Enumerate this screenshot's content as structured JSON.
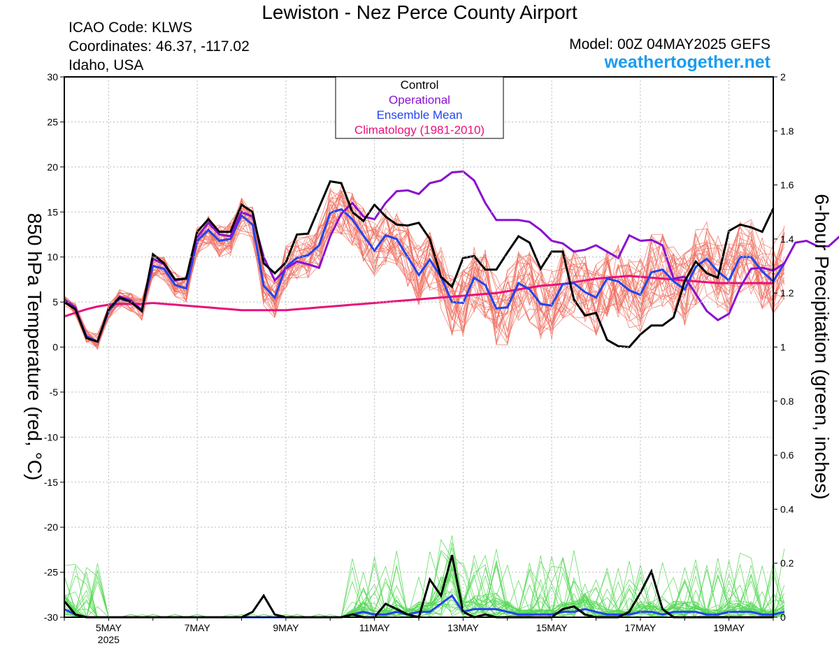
{
  "header": {
    "title": "Lewiston - Nez Perce County Airport",
    "icao": "ICAO Code: KLWS",
    "coordinates": "Coordinates: 46.37, -117.02",
    "region": "Idaho, USA",
    "model": "Model: 00Z 04MAY2025 GEFS",
    "site": "weathertogether.net"
  },
  "colors": {
    "members_temp": "#f07060",
    "members_precip": "#55d855",
    "control": "#000000",
    "operational": "#8a10d0",
    "ensemble_mean": "#2244ee",
    "climatology": "#e8107a"
  },
  "chart_data": {
    "type": "line",
    "x_unit": "days since 04MAY2025 00Z",
    "xlim": [
      0,
      16
    ],
    "x_ticks": [
      {
        "x": 1,
        "label": "5MAY"
      },
      {
        "x": 3,
        "label": "7MAY"
      },
      {
        "x": 5,
        "label": "9MAY"
      },
      {
        "x": 7,
        "label": "11MAY"
      },
      {
        "x": 9,
        "label": "13MAY"
      },
      {
        "x": 11,
        "label": "15MAY"
      },
      {
        "x": 13,
        "label": "17MAY"
      },
      {
        "x": 15,
        "label": "19MAY"
      }
    ],
    "year_label": "2025",
    "ylabel_left": "850 hPa Temperature (red, °C)",
    "ylabel_right": "6-hour Precipitation (green, inches)",
    "ylim_left": [
      -30,
      30
    ],
    "yticks_left": [
      30,
      25,
      20,
      15,
      10,
      5,
      0,
      -5,
      -10,
      -15,
      -20,
      -25,
      -30
    ],
    "ylim_right": [
      0,
      2
    ],
    "yticks_right": [
      "2",
      "1.8",
      "1.6",
      "1.4",
      "1.2",
      "1",
      "0.8",
      "0.6",
      "0.4",
      "0.2",
      "0"
    ],
    "legend": {
      "placement": "top-center",
      "entries": [
        {
          "label": "Control",
          "color": "#000000"
        },
        {
          "label": "Operational",
          "color": "#8a10d0"
        },
        {
          "label": "Ensemble Mean",
          "color": "#2244ee"
        },
        {
          "label": "Climatology (1981-2010)",
          "color": "#e8107a"
        }
      ]
    },
    "step_days": 0.25,
    "temperature": {
      "control": [
        5.0,
        4.2,
        1.0,
        0.6,
        4.2,
        5.5,
        5.0,
        4.0,
        10.3,
        9.3,
        7.5,
        7.6,
        12.8,
        14.2,
        12.8,
        12.8,
        15.8,
        15.0,
        9.3,
        8.2,
        9.4,
        12.5,
        12.6,
        15.5,
        18.4,
        18.2,
        15.0,
        14.0,
        15.8,
        14.5,
        13.6,
        13.5,
        13.8,
        12.0,
        7.8,
        6.7,
        9.9,
        10.1,
        8.6,
        8.6,
        10.5,
        12.3,
        11.6,
        8.7,
        10.6,
        10.6,
        5.3,
        3.5,
        3.8,
        0.8,
        0.1,
        0.0,
        1.4,
        2.4,
        2.4,
        3.3,
        7.3,
        9.5,
        8.2,
        7.7,
        12.9,
        13.6,
        13.3,
        12.8,
        15.4
      ],
      "operational": [
        5.3,
        4.4,
        1.0,
        0.6,
        4.2,
        5.6,
        5.2,
        4.0,
        9.8,
        9.2,
        7.4,
        7.6,
        12.2,
        13.8,
        12.5,
        12.3,
        15.0,
        14.5,
        10.0,
        7.4,
        8.7,
        9.5,
        9.2,
        8.8,
        12.3,
        14.8,
        16.0,
        14.5,
        14.2,
        16.0,
        17.3,
        17.4,
        17.0,
        18.2,
        18.5,
        19.4,
        19.5,
        18.5,
        16.0,
        14.1,
        14.1,
        14.1,
        13.9,
        13.0,
        11.8,
        11.5,
        10.6,
        10.8,
        11.3,
        10.6,
        9.9,
        12.4,
        11.8,
        11.9,
        11.3,
        7.6,
        7.8,
        5.9,
        4.0,
        3.0,
        3.7,
        6.6,
        8.7,
        8.8,
        8.5,
        9.3,
        11.6,
        11.8,
        11.2,
        11.2,
        12.3,
        13.7,
        14.5,
        14.2,
        15.1,
        17.4
      ],
      "ensemble_mean": [
        5.2,
        4.2,
        1.2,
        0.6,
        4.0,
        5.4,
        5.0,
        4.2,
        9.0,
        8.7,
        6.9,
        6.5,
        11.8,
        13.0,
        11.8,
        12.0,
        14.6,
        13.6,
        6.8,
        5.5,
        8.9,
        9.9,
        10.2,
        11.3,
        14.9,
        15.3,
        14.2,
        12.4,
        10.7,
        12.4,
        12.0,
        10.0,
        8.0,
        9.7,
        7.8,
        5.0,
        4.9,
        7.7,
        6.9,
        4.3,
        4.4,
        7.1,
        6.4,
        4.8,
        4.6,
        7.0,
        7.1,
        6.1,
        5.5,
        7.6,
        7.3,
        6.3,
        5.8,
        8.3,
        8.6,
        7.3,
        6.4,
        8.9,
        9.8,
        8.4,
        7.4,
        10.0,
        10.0,
        8.4,
        7.3,
        9.3
      ],
      "climatology": [
        3.4,
        3.8,
        4.2,
        4.5,
        4.7,
        4.8,
        4.8,
        4.8,
        4.9,
        4.8,
        4.7,
        4.6,
        4.5,
        4.4,
        4.3,
        4.2,
        4.1,
        4.1,
        4.1,
        4.1,
        4.1,
        4.2,
        4.3,
        4.4,
        4.5,
        4.6,
        4.7,
        4.8,
        4.9,
        5.0,
        5.1,
        5.2,
        5.3,
        5.4,
        5.5,
        5.6,
        5.7,
        5.8,
        5.9,
        6.0,
        6.2,
        6.4,
        6.6,
        6.8,
        6.9,
        7.0,
        7.2,
        7.4,
        7.6,
        7.7,
        7.8,
        7.9,
        7.8,
        7.7,
        7.6,
        7.5,
        7.4,
        7.3,
        7.2,
        7.1,
        7.1,
        7.1,
        7.1,
        7.1,
        7.1
      ]
    },
    "precipitation": {
      "control": [
        0.06,
        0.01,
        0,
        0,
        0,
        0,
        0,
        0,
        0,
        0,
        0,
        0,
        0,
        0,
        0,
        0,
        0,
        0.02,
        0.08,
        0.01,
        0,
        0,
        0,
        0,
        0,
        0,
        0.01,
        0,
        0,
        0.05,
        0.03,
        0.01,
        0,
        0.14,
        0.08,
        0.23,
        0.02,
        0,
        0.01,
        0,
        0,
        0,
        0,
        0,
        0,
        0.03,
        0.04,
        0.01,
        0,
        0,
        0,
        0.02,
        0.09,
        0.17,
        0.03,
        0,
        0,
        0,
        0,
        0,
        0,
        0,
        0,
        0,
        0
      ],
      "ensemble_mean": [
        0.03,
        0.01,
        0,
        0,
        0,
        0,
        0,
        0,
        0,
        0,
        0,
        0,
        0,
        0,
        0,
        0,
        0,
        0,
        0,
        0,
        0,
        0,
        0,
        0,
        0,
        0,
        0.01,
        0.02,
        0.01,
        0.01,
        0.02,
        0.01,
        0.02,
        0.02,
        0.05,
        0.08,
        0.02,
        0.03,
        0.03,
        0.03,
        0.02,
        0.01,
        0.01,
        0.01,
        0.01,
        0.02,
        0.02,
        0.03,
        0.02,
        0.01,
        0.01,
        0.01,
        0.02,
        0.02,
        0.01,
        0.02,
        0.02,
        0.02,
        0.01,
        0.01,
        0.02,
        0.02,
        0.02,
        0.01,
        0.01,
        0.02
      ]
    }
  }
}
